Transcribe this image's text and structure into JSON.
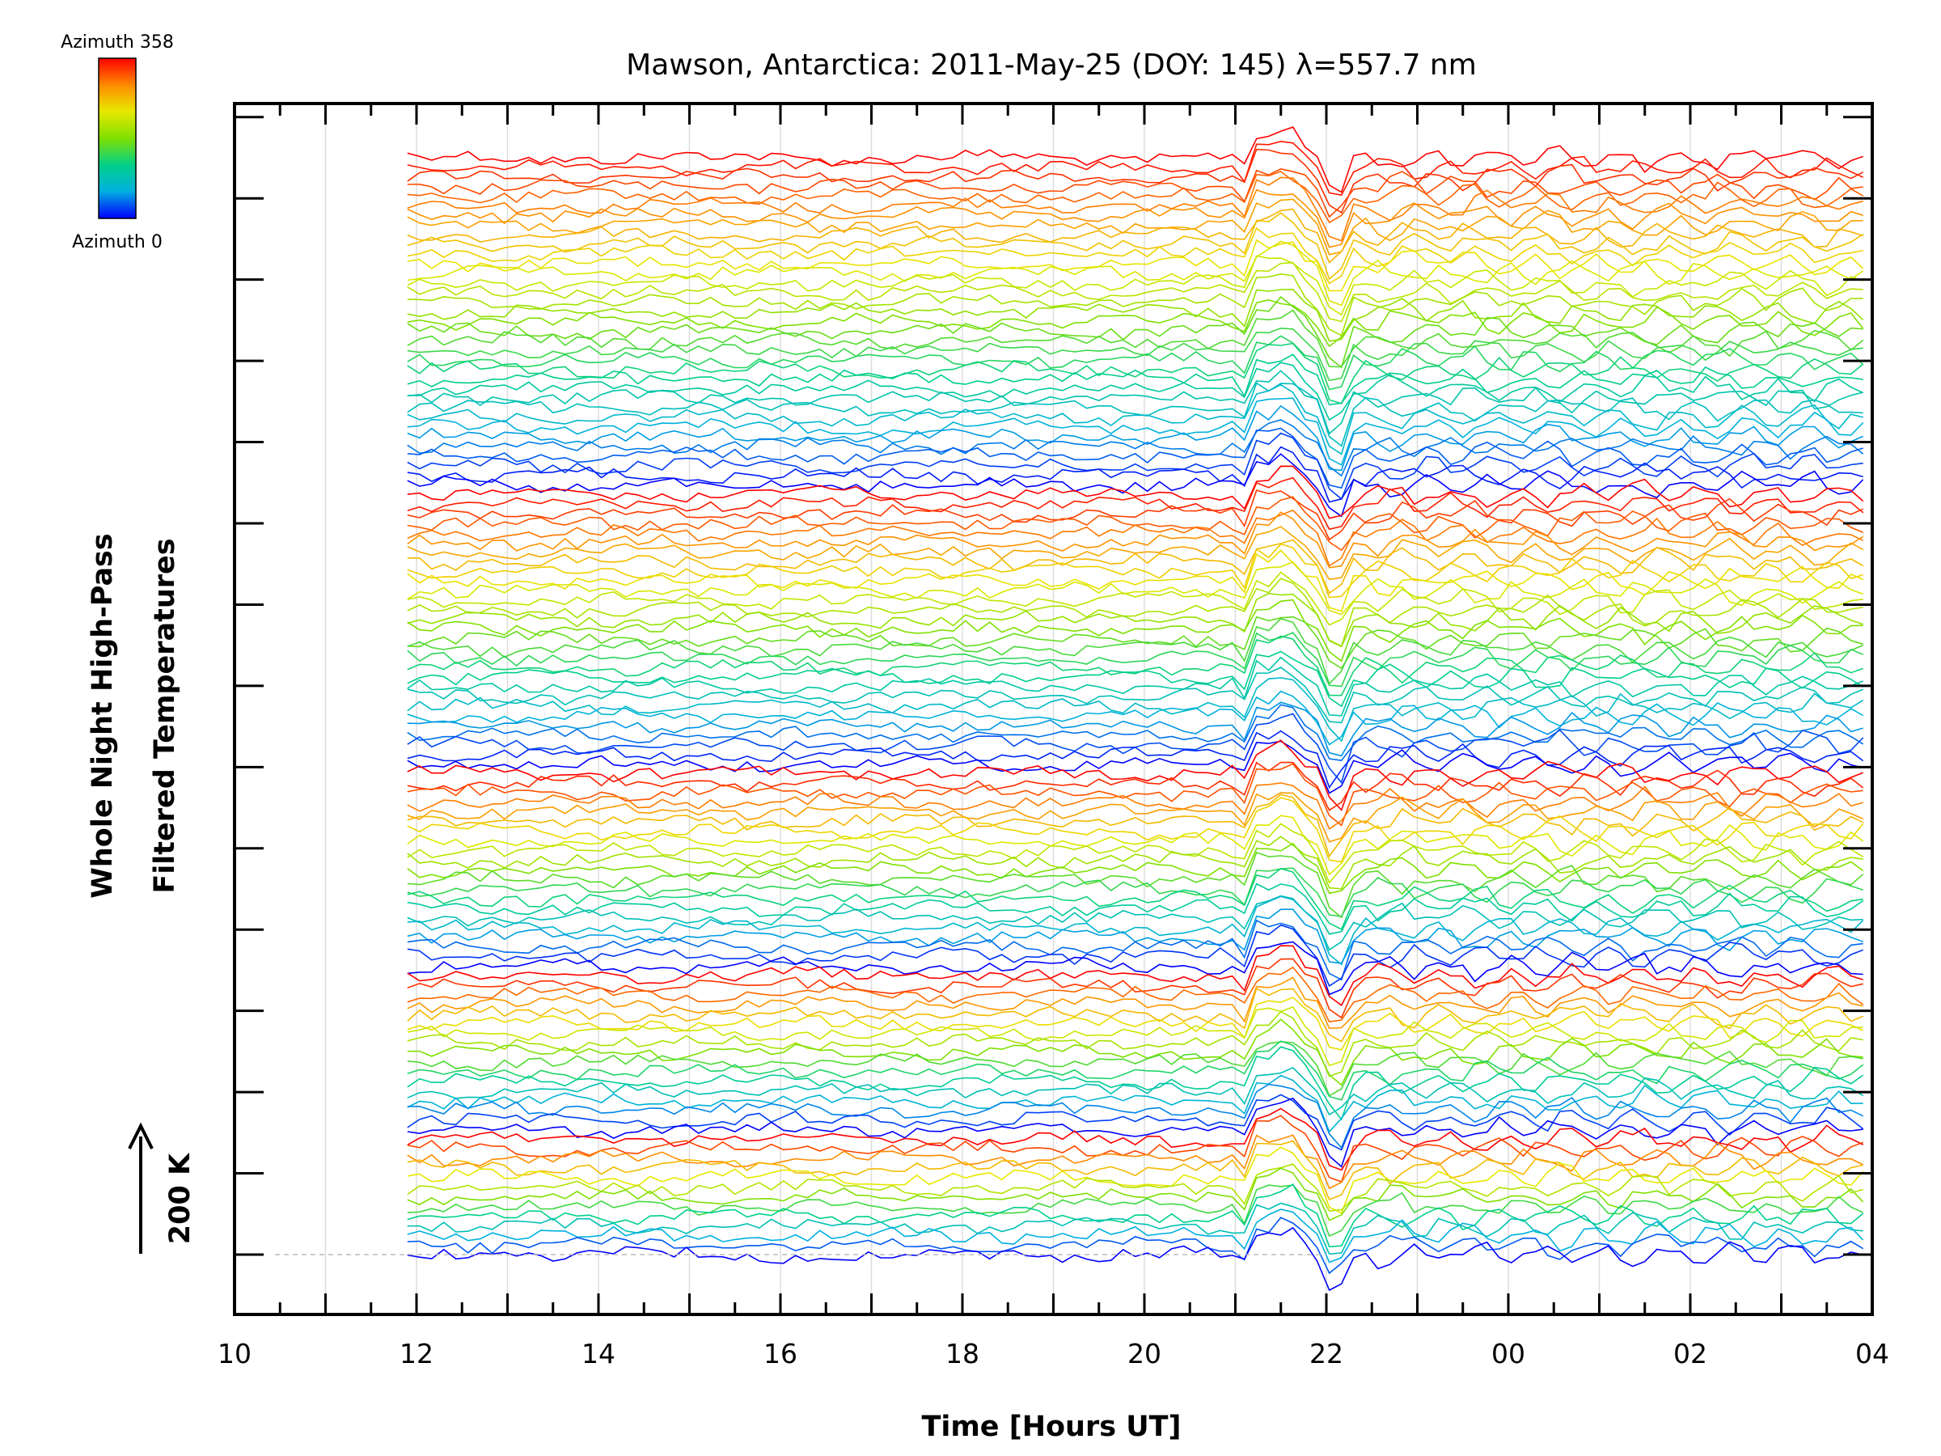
{
  "chart_data": {
    "type": "line",
    "title": "Mawson, Antarctica: 2011-May-25 (DOY: 145) λ=557.7 nm",
    "xlabel": "Time [Hours UT]",
    "ylabel_line1": "Whole Night High-Pass",
    "ylabel_line2": "Filtered Temperatures",
    "scale_label": "200 K",
    "colorbar": {
      "top_label": "Azimuth  358",
      "bottom_label": "Azimuth  0",
      "colors": [
        "#ff0000",
        "#ff8c00",
        "#e8e800",
        "#7fe000",
        "#00d08a",
        "#00b0e0",
        "#0000ff"
      ]
    },
    "x_tick_labels": [
      "10",
      "12",
      "14",
      "16",
      "18",
      "20",
      "22",
      "00",
      "02",
      "04"
    ],
    "x_range_hours": [
      10,
      28
    ],
    "data_start_hour": 11.9,
    "data_end_hour": 28,
    "ylim": [
      0,
      1
    ],
    "grid": "vertical lines at each hour",
    "series_note": "115 stacked traces, one per zenith/azimuth sample, colored by azimuth 0 to 358",
    "trace_count": 115,
    "group_sizes": [
      13,
      17,
      21,
      29,
      35
    ],
    "event": {
      "onset_hour": 21.0,
      "peak_hour": 21.5,
      "trough_hour": 22.1
    }
  }
}
